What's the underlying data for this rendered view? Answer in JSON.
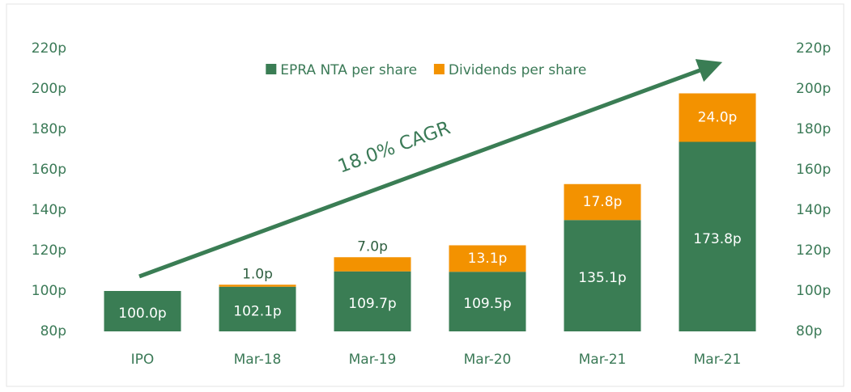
{
  "chart_data": {
    "type": "stacked_bar",
    "categories": [
      "IPO",
      "Mar-18",
      "Mar-19",
      "Mar-20",
      "Mar-21",
      "Mar-21"
    ],
    "series": [
      {
        "name": "EPRA NTA per share",
        "color": "#3a7d54",
        "values": [
          100.0,
          102.1,
          109.7,
          109.5,
          135.1,
          173.8
        ],
        "value_labels": [
          "100.0p",
          "102.1p",
          "109.7p",
          "109.5p",
          "135.1p",
          "173.8p"
        ]
      },
      {
        "name": "Dividends per share",
        "color": "#f39200",
        "values": [
          null,
          1.0,
          7.0,
          13.1,
          17.8,
          24.0
        ],
        "value_labels": [
          null,
          "1.0p",
          "7.0p",
          "13.1p",
          "17.8p",
          "24.0p"
        ]
      }
    ],
    "ylim": [
      80,
      220
    ],
    "yticks": [
      {
        "value": 80,
        "label": "80p"
      },
      {
        "value": 100,
        "label": "100p"
      },
      {
        "value": 120,
        "label": "120p"
      },
      {
        "value": 140,
        "label": "140p"
      },
      {
        "value": 160,
        "label": "160p"
      },
      {
        "value": 180,
        "label": "180p"
      },
      {
        "value": 200,
        "label": "200p"
      },
      {
        "value": 220,
        "label": "220p"
      }
    ],
    "y2lim": [
      80,
      220
    ],
    "y2ticks": [
      {
        "value": 80,
        "label": "80p"
      },
      {
        "value": 100,
        "label": "100p"
      },
      {
        "value": 120,
        "label": "120p"
      },
      {
        "value": 140,
        "label": "140p"
      },
      {
        "value": 160,
        "label": "160p"
      },
      {
        "value": 180,
        "label": "180p"
      },
      {
        "value": 200,
        "label": "200p"
      },
      {
        "value": 220,
        "label": "220p"
      }
    ],
    "annotation": "18.0% CAGR",
    "legend": "top"
  }
}
